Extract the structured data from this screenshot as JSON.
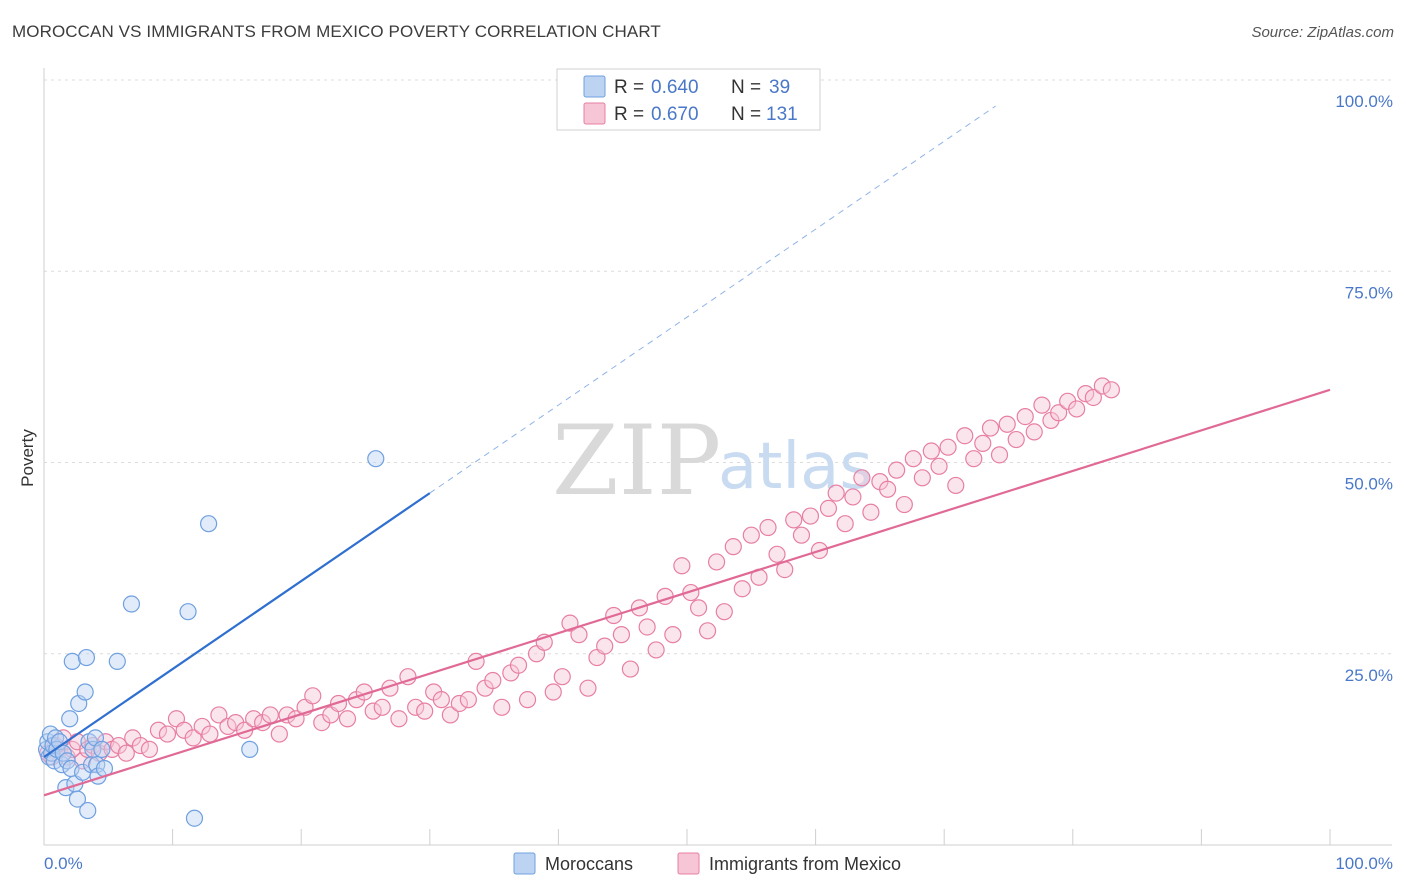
{
  "header": {
    "title": "MOROCCAN VS IMMIGRANTS FROM MEXICO POVERTY CORRELATION CHART",
    "source": "Source: ZipAtlas.com"
  },
  "watermark": {
    "zip": "ZIP",
    "atlas": "atlas"
  },
  "legend": {
    "r_label": "R =",
    "n_label": "N =",
    "items": [
      {
        "name": "Moroccans",
        "r": "0.640",
        "n": "39",
        "color": "#6fa0e0",
        "fill": "#bcd3f2"
      },
      {
        "name": "Immigrants from Mexico",
        "r": "0.670",
        "n": "131",
        "color": "#e77fa3",
        "fill": "#f7c6d6"
      }
    ]
  },
  "chart_data": {
    "type": "scatter",
    "xlabel": "",
    "ylabel": "Poverty",
    "xlim": [
      0,
      100
    ],
    "ylim": [
      0,
      100
    ],
    "x_tick_labels": [
      "0.0%",
      "100.0%"
    ],
    "y_tick_labels": [
      "25.0%",
      "50.0%",
      "75.0%",
      "100.0%"
    ],
    "y_ticks": [
      25,
      50,
      75,
      100
    ],
    "grid": true,
    "series": [
      {
        "name": "Moroccans",
        "color": "#6fa0e0",
        "fill": "#bcd3f2",
        "trend_color": "#2f6fcf",
        "trend": {
          "x0": 0,
          "y0": 11.5,
          "x1": 30,
          "y1": 46,
          "dash_to_x": 74
        },
        "points": [
          [
            0.2,
            12.5
          ],
          [
            0.3,
            13.5
          ],
          [
            0.4,
            11.5
          ],
          [
            0.5,
            14.5
          ],
          [
            0.6,
            12.0
          ],
          [
            0.7,
            13.0
          ],
          [
            0.8,
            11.0
          ],
          [
            0.9,
            14.0
          ],
          [
            1.0,
            12.5
          ],
          [
            1.2,
            13.5
          ],
          [
            1.4,
            10.5
          ],
          [
            1.5,
            12.0
          ],
          [
            1.7,
            7.5
          ],
          [
            1.8,
            11.0
          ],
          [
            2.0,
            16.5
          ],
          [
            2.1,
            10.0
          ],
          [
            2.2,
            24.0
          ],
          [
            2.4,
            8.0
          ],
          [
            2.6,
            6.0
          ],
          [
            2.7,
            18.5
          ],
          [
            3.0,
            9.5
          ],
          [
            3.2,
            20.0
          ],
          [
            3.3,
            24.5
          ],
          [
            3.4,
            4.5
          ],
          [
            3.5,
            13.5
          ],
          [
            3.7,
            10.5
          ],
          [
            3.8,
            12.5
          ],
          [
            4.0,
            14.0
          ],
          [
            4.1,
            10.5
          ],
          [
            4.2,
            9.0
          ],
          [
            4.5,
            12.5
          ],
          [
            4.7,
            10.0
          ],
          [
            5.7,
            24.0
          ],
          [
            6.8,
            31.5
          ],
          [
            11.2,
            30.5
          ],
          [
            11.7,
            3.5
          ],
          [
            12.8,
            42.0
          ],
          [
            16.0,
            12.5
          ],
          [
            25.8,
            50.5
          ]
        ]
      },
      {
        "name": "Immigrants from Mexico",
        "color": "#e77fa3",
        "fill": "#f7c6d6",
        "trend_color": "#e06a95",
        "trend": {
          "x0": 0,
          "y0": 6.5,
          "x1": 100,
          "y1": 59.5
        },
        "points": [
          [
            0.3,
            12.0
          ],
          [
            0.6,
            11.5
          ],
          [
            0.9,
            13.0
          ],
          [
            1.2,
            12.5
          ],
          [
            1.5,
            14.0
          ],
          [
            1.8,
            11.5
          ],
          [
            2.2,
            12.5
          ],
          [
            2.6,
            13.5
          ],
          [
            3.0,
            11.0
          ],
          [
            3.4,
            12.5
          ],
          [
            3.8,
            13.0
          ],
          [
            4.3,
            12.0
          ],
          [
            4.8,
            13.5
          ],
          [
            5.3,
            12.5
          ],
          [
            5.8,
            13.0
          ],
          [
            6.4,
            12.0
          ],
          [
            6.9,
            14.0
          ],
          [
            7.5,
            13.0
          ],
          [
            8.2,
            12.5
          ],
          [
            8.9,
            15.0
          ],
          [
            9.6,
            14.5
          ],
          [
            10.3,
            16.5
          ],
          [
            10.9,
            15.0
          ],
          [
            11.6,
            14.0
          ],
          [
            12.3,
            15.5
          ],
          [
            12.9,
            14.5
          ],
          [
            13.6,
            17.0
          ],
          [
            14.3,
            15.5
          ],
          [
            14.9,
            16.0
          ],
          [
            15.6,
            15.0
          ],
          [
            16.3,
            16.5
          ],
          [
            17.0,
            16.0
          ],
          [
            17.6,
            17.0
          ],
          [
            18.3,
            14.5
          ],
          [
            18.9,
            17.0
          ],
          [
            19.6,
            16.5
          ],
          [
            20.3,
            18.0
          ],
          [
            20.9,
            19.5
          ],
          [
            21.6,
            16.0
          ],
          [
            22.3,
            17.0
          ],
          [
            22.9,
            18.5
          ],
          [
            23.6,
            16.5
          ],
          [
            24.3,
            19.0
          ],
          [
            24.9,
            20.0
          ],
          [
            25.6,
            17.5
          ],
          [
            26.3,
            18.0
          ],
          [
            26.9,
            20.5
          ],
          [
            27.6,
            16.5
          ],
          [
            28.3,
            22.0
          ],
          [
            28.9,
            18.0
          ],
          [
            29.6,
            17.5
          ],
          [
            30.3,
            20.0
          ],
          [
            30.9,
            19.0
          ],
          [
            31.6,
            17.0
          ],
          [
            32.3,
            18.5
          ],
          [
            33.0,
            19.0
          ],
          [
            33.6,
            24.0
          ],
          [
            34.3,
            20.5
          ],
          [
            34.9,
            21.5
          ],
          [
            35.6,
            18.0
          ],
          [
            36.3,
            22.5
          ],
          [
            36.9,
            23.5
          ],
          [
            37.6,
            19.0
          ],
          [
            38.3,
            25.0
          ],
          [
            38.9,
            26.5
          ],
          [
            39.6,
            20.0
          ],
          [
            40.3,
            22.0
          ],
          [
            40.9,
            29.0
          ],
          [
            41.6,
            27.5
          ],
          [
            42.3,
            20.5
          ],
          [
            43.0,
            24.5
          ],
          [
            43.6,
            26.0
          ],
          [
            44.3,
            30.0
          ],
          [
            44.9,
            27.5
          ],
          [
            45.6,
            23.0
          ],
          [
            46.3,
            31.0
          ],
          [
            46.9,
            28.5
          ],
          [
            47.6,
            25.5
          ],
          [
            48.3,
            32.5
          ],
          [
            48.9,
            27.5
          ],
          [
            49.6,
            36.5
          ],
          [
            50.3,
            33.0
          ],
          [
            50.9,
            31.0
          ],
          [
            51.6,
            28.0
          ],
          [
            52.3,
            37.0
          ],
          [
            52.9,
            30.5
          ],
          [
            53.6,
            39.0
          ],
          [
            54.3,
            33.5
          ],
          [
            55.0,
            40.5
          ],
          [
            55.6,
            35.0
          ],
          [
            56.3,
            41.5
          ],
          [
            57.0,
            38.0
          ],
          [
            57.6,
            36.0
          ],
          [
            58.3,
            42.5
          ],
          [
            58.9,
            40.5
          ],
          [
            59.6,
            43.0
          ],
          [
            60.3,
            38.5
          ],
          [
            61.0,
            44.0
          ],
          [
            61.6,
            46.0
          ],
          [
            62.3,
            42.0
          ],
          [
            62.9,
            45.5
          ],
          [
            63.6,
            48.0
          ],
          [
            64.3,
            43.5
          ],
          [
            65.0,
            47.5
          ],
          [
            65.6,
            46.5
          ],
          [
            66.3,
            49.0
          ],
          [
            66.9,
            44.5
          ],
          [
            67.6,
            50.5
          ],
          [
            68.3,
            48.0
          ],
          [
            69.0,
            51.5
          ],
          [
            69.6,
            49.5
          ],
          [
            70.3,
            52.0
          ],
          [
            70.9,
            47.0
          ],
          [
            71.6,
            53.5
          ],
          [
            72.3,
            50.5
          ],
          [
            73.0,
            52.5
          ],
          [
            73.6,
            54.5
          ],
          [
            74.3,
            51.0
          ],
          [
            74.9,
            55.0
          ],
          [
            75.6,
            53.0
          ],
          [
            76.3,
            56.0
          ],
          [
            77.0,
            54.0
          ],
          [
            77.6,
            57.5
          ],
          [
            78.3,
            55.5
          ],
          [
            78.9,
            56.5
          ],
          [
            79.6,
            58.0
          ],
          [
            80.3,
            57.0
          ],
          [
            81.0,
            59.0
          ],
          [
            81.6,
            58.5
          ],
          [
            82.3,
            60.0
          ],
          [
            83.0,
            59.5
          ]
        ]
      }
    ]
  }
}
